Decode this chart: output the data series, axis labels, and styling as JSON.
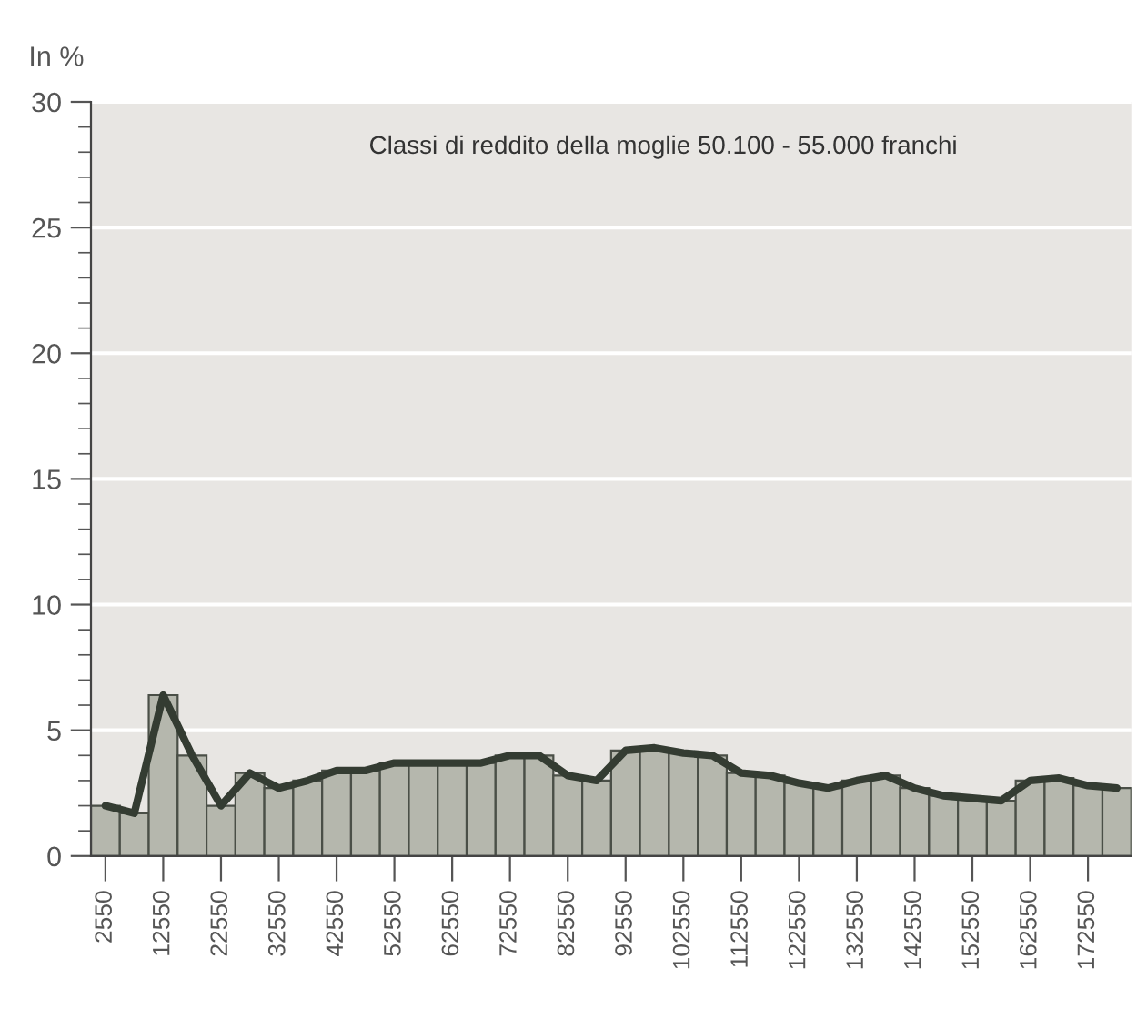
{
  "chart_data": {
    "type": "bar",
    "ylabel": "In %",
    "annotations": [
      "Classi di reddito della moglie 50.100 - 55.000 franchi"
    ],
    "categories": [
      "2550",
      null,
      "12550",
      null,
      "22550",
      null,
      "32550",
      null,
      "42550",
      null,
      "52550",
      null,
      "62550",
      null,
      "72550",
      null,
      "82550",
      null,
      "92550",
      null,
      "102550",
      null,
      "112550",
      null,
      "122550",
      null,
      "132550",
      null,
      "142550",
      null,
      "152550",
      null,
      "162550",
      null,
      "172550",
      null
    ],
    "series": [
      {
        "color": "#b5b7ad",
        "values": [
          2.0,
          1.7,
          6.4,
          4.0,
          2.0,
          3.3,
          2.7,
          3.0,
          3.4,
          3.4,
          3.7,
          3.7,
          3.7,
          3.7,
          4.0,
          4.0,
          3.2,
          3.0,
          4.2,
          4.3,
          4.1,
          4.0,
          3.3,
          3.2,
          2.9,
          2.7,
          3.0,
          3.2,
          2.7,
          2.4,
          2.3,
          2.2,
          3.0,
          3.1,
          2.8,
          2.7
        ]
      },
      {
        "type": "line",
        "color": "#343c32",
        "values": [
          2.0,
          1.7,
          6.4,
          4.0,
          2.0,
          3.3,
          2.7,
          3.0,
          3.4,
          3.4,
          3.7,
          3.7,
          3.7,
          3.7,
          4.0,
          4.0,
          3.2,
          3.0,
          4.2,
          4.3,
          4.1,
          4.0,
          3.3,
          3.2,
          2.9,
          2.7,
          3.0,
          3.2,
          2.7,
          2.4,
          2.3,
          2.2,
          3.0,
          3.1,
          2.8,
          2.7
        ]
      }
    ],
    "ylim": [
      0,
      30
    ],
    "yticks": [
      0,
      5,
      10,
      15,
      20,
      25,
      30
    ],
    "grid": "y",
    "legend": false
  }
}
